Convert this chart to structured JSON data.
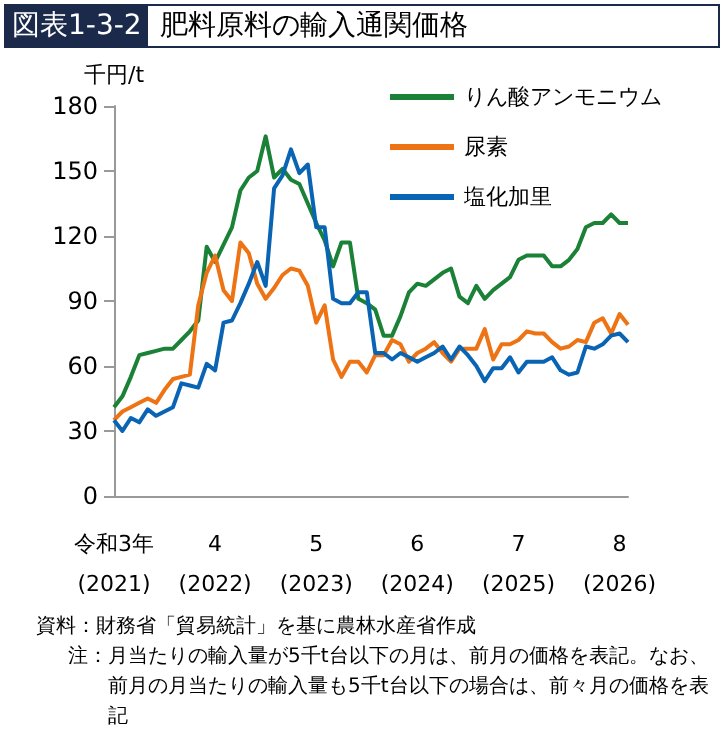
{
  "chart_data": {
    "type": "line",
    "subtitle": "図表1-3-2",
    "title": "肥料原料の輸入通関価格",
    "ylabel": "千円/t",
    "annotations": [
      "資料：財務省「貿易統計」を基に農林水産省作成",
      "注：月当たりの輸入量が5千t台以下の月は、前月の価格を表記。なお、前月の月当たりの輸入量も5千t台以下の場合は、前々月の価格を表記"
    ],
    "categories": [
      "令和3年\n(2021)",
      null,
      null,
      null,
      null,
      null,
      null,
      null,
      null,
      null,
      null,
      null,
      "4\n(2022)",
      null,
      null,
      null,
      null,
      null,
      null,
      null,
      null,
      null,
      null,
      null,
      "5\n(2023)",
      null,
      null,
      null,
      null,
      null,
      null,
      null,
      null,
      null,
      null,
      null,
      "6\n(2024)",
      null,
      null,
      null,
      null,
      null,
      null,
      null,
      null,
      null,
      null,
      null,
      "7\n(2025)",
      null,
      null,
      null,
      null,
      null,
      null,
      null,
      null,
      null,
      null,
      null,
      "8\n(2026)",
      null
    ],
    "ylim": [
      0,
      180
    ],
    "yticks": [
      0,
      30,
      60,
      90,
      120,
      150,
      180
    ],
    "grid": false,
    "legend": "top right",
    "marker": "none",
    "line_style": "solid",
    "series": [
      {
        "name": "りん酸アンモニウム",
        "color": "#1a8137",
        "values": [
          41,
          46,
          55,
          65,
          66,
          67,
          68,
          68,
          72,
          76,
          81,
          115,
          108,
          116,
          124,
          141,
          147,
          150,
          166,
          147,
          151,
          146,
          144,
          135,
          126,
          118,
          106,
          117,
          117,
          91,
          89,
          86,
          74,
          74,
          83,
          94,
          98,
          97,
          100,
          103,
          105,
          92,
          89,
          97,
          91,
          95,
          98,
          101,
          109,
          111,
          111,
          111,
          106,
          106,
          109,
          114,
          124,
          126,
          126,
          130,
          126,
          126
        ]
      },
      {
        "name": "尿素",
        "color": "#ee7314",
        "values": [
          35,
          39,
          41,
          43,
          45,
          43,
          49,
          54,
          55,
          56,
          88,
          103,
          111,
          95,
          90,
          117,
          112,
          98,
          91,
          96,
          102,
          105,
          104,
          97,
          80,
          88,
          63,
          55,
          62,
          62,
          57,
          65,
          65,
          72,
          70,
          62,
          66,
          68,
          71,
          66,
          62,
          68,
          68,
          68,
          77,
          63,
          70,
          70,
          72,
          76,
          75,
          75,
          71,
          68,
          69,
          72,
          71,
          80,
          82,
          75,
          84,
          79
        ]
      },
      {
        "name": "塩化加里",
        "color": "#0a64b4",
        "values": [
          35,
          30,
          36,
          34,
          40,
          37,
          39,
          41,
          52,
          51,
          50,
          61,
          58,
          80,
          81,
          89,
          98,
          108,
          97,
          142,
          148,
          160,
          149,
          153,
          124,
          124,
          91,
          89,
          89,
          94,
          94,
          66,
          66,
          63,
          66,
          64,
          62,
          64,
          66,
          69,
          63,
          69,
          65,
          60,
          53,
          59,
          59,
          64,
          57,
          62,
          62,
          62,
          64,
          58,
          56,
          57,
          69,
          68,
          70,
          74,
          75,
          71
        ]
      }
    ]
  }
}
